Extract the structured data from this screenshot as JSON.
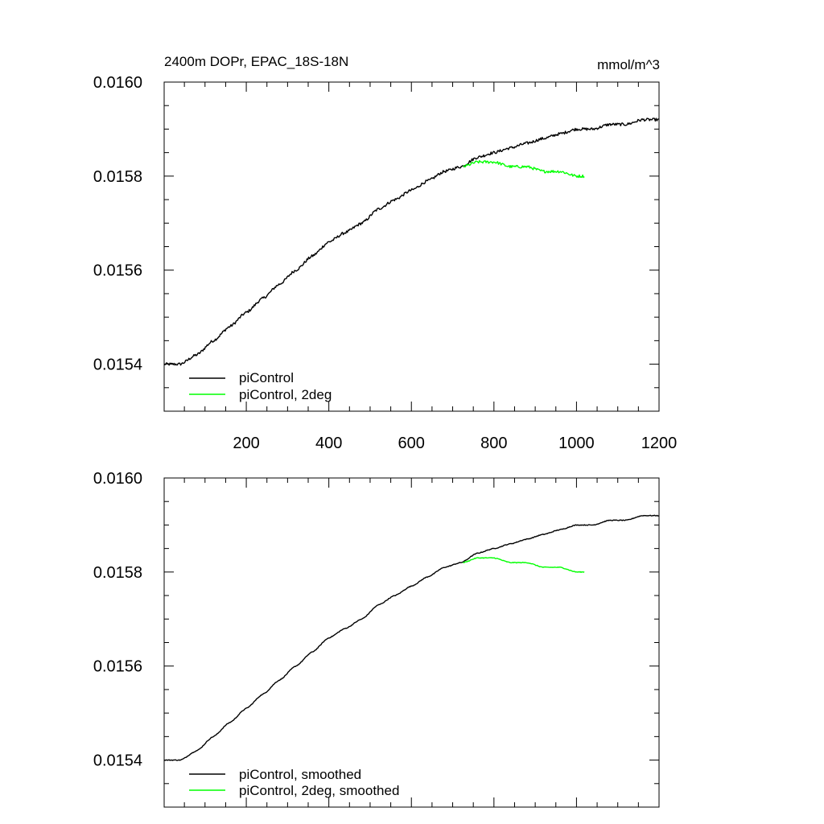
{
  "chart_data": [
    {
      "type": "line",
      "title": "2400m DOPr, EPAC_18S-18N",
      "units": "mmol/m^3",
      "xlabel": "",
      "ylabel": "",
      "xlim": [
        1,
        1200
      ],
      "ylim": [
        0.0153,
        0.016
      ],
      "xticks": [
        200,
        400,
        600,
        800,
        1000,
        1200
      ],
      "xtick_labels": [
        "200",
        "400",
        "600",
        "800",
        "1000",
        "1200"
      ],
      "yticks": [
        0.0154,
        0.0156,
        0.0158,
        0.016
      ],
      "ytick_labels": [
        "0.0154",
        "0.0156",
        "0.0158",
        "0.0160"
      ],
      "legend_position": "bottom-left",
      "series": [
        {
          "name": "piControl",
          "color": "#000000",
          "noise": 3e-06,
          "x": [
            1,
            40,
            80,
            120,
            160,
            200,
            240,
            280,
            320,
            360,
            400,
            440,
            480,
            520,
            560,
            600,
            640,
            680,
            720,
            760,
            800,
            840,
            880,
            920,
            960,
            1000,
            1040,
            1080,
            1120,
            1160,
            1200
          ],
          "y": [
            0.0154,
            0.0154,
            0.01542,
            0.01545,
            0.01548,
            0.01551,
            0.01554,
            0.01557,
            0.0156,
            0.01563,
            0.01566,
            0.01568,
            0.0157,
            0.01573,
            0.01575,
            0.01577,
            0.01579,
            0.01581,
            0.01582,
            0.01584,
            0.01585,
            0.01586,
            0.01587,
            0.01588,
            0.01589,
            0.0159,
            0.0159,
            0.01591,
            0.01591,
            0.01592,
            0.01592
          ]
        },
        {
          "name": "piControl, 2deg",
          "color": "#00ff00",
          "noise": 3e-06,
          "x": [
            725,
            760,
            800,
            840,
            880,
            920,
            960,
            1000,
            1020
          ],
          "y": [
            0.01582,
            0.01583,
            0.01583,
            0.01582,
            0.01582,
            0.01581,
            0.01581,
            0.0158,
            0.0158
          ]
        }
      ]
    },
    {
      "type": "line",
      "title": "",
      "xlabel": "",
      "ylabel": "",
      "xlim": [
        1,
        1200
      ],
      "ylim": [
        0.0153,
        0.016
      ],
      "yticks": [
        0.0154,
        0.0156,
        0.0158,
        0.016
      ],
      "ytick_labels": [
        "0.0154",
        "0.0156",
        "0.0158",
        "0.0160"
      ],
      "legend_position": "bottom-left",
      "series": [
        {
          "name": "piControl, smoothed",
          "color": "#000000",
          "noise": 8e-07,
          "x": [
            1,
            40,
            80,
            120,
            160,
            200,
            240,
            280,
            320,
            360,
            400,
            440,
            480,
            520,
            560,
            600,
            640,
            680,
            720,
            760,
            800,
            840,
            880,
            920,
            960,
            1000,
            1040,
            1080,
            1120,
            1160,
            1200
          ],
          "y": [
            0.0154,
            0.0154,
            0.01542,
            0.01545,
            0.01548,
            0.01551,
            0.01554,
            0.01557,
            0.0156,
            0.01563,
            0.01566,
            0.01568,
            0.0157,
            0.01573,
            0.01575,
            0.01577,
            0.01579,
            0.01581,
            0.01582,
            0.01584,
            0.01585,
            0.01586,
            0.01587,
            0.01588,
            0.01589,
            0.0159,
            0.0159,
            0.01591,
            0.01591,
            0.01592,
            0.01592
          ]
        },
        {
          "name": "piControl, 2deg, smoothed",
          "color": "#00ff00",
          "noise": 8e-07,
          "x": [
            725,
            760,
            800,
            840,
            880,
            920,
            960,
            1000,
            1020
          ],
          "y": [
            0.01582,
            0.01583,
            0.01583,
            0.01582,
            0.01582,
            0.01581,
            0.01581,
            0.0158,
            0.0158
          ]
        }
      ]
    }
  ]
}
